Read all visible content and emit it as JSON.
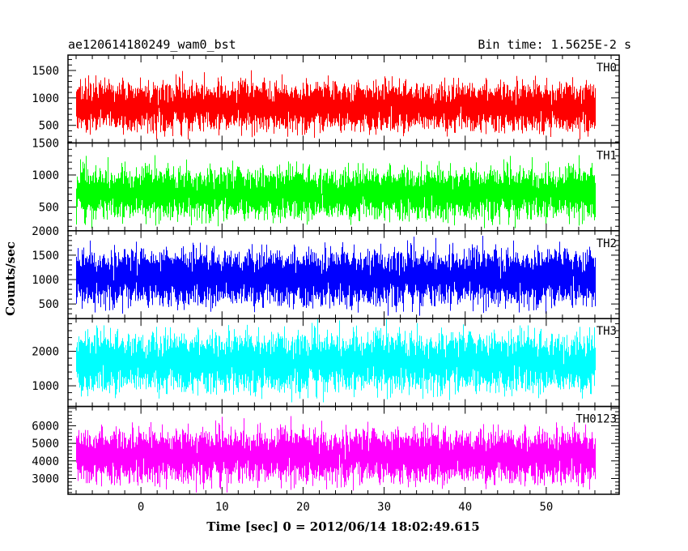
{
  "header": {
    "title": "ae120614180249_wam0_bst",
    "bin_time": "Bin time: 1.5625E-2 s"
  },
  "chart_data": {
    "type": "line",
    "title": "ae120614180249_wam0_bst",
    "xlabel": "Time [sec] 0 = 2012/06/14 18:02:49.615",
    "ylabel": "Counts/sec",
    "xlim": [
      -9,
      59
    ],
    "x_ticks": [
      0,
      10,
      20,
      30,
      40,
      50
    ],
    "x_range_data": [
      -8,
      56
    ],
    "bin_time_s": 0.015625,
    "grid": false,
    "panels": [
      {
        "name": "TH0",
        "color": "#ff0000",
        "ylim": [
          180,
          1780
        ],
        "yticks": [
          500,
          1000,
          1500
        ],
        "mean": 850,
        "min": 240,
        "max": 1760
      },
      {
        "name": "TH1",
        "color": "#00ff00",
        "ylim": [
          130,
          1500
        ],
        "yticks": [
          500,
          1000,
          1500
        ],
        "mean": 720,
        "min": 170,
        "max": 1500
      },
      {
        "name": "TH2",
        "color": "#0000ff",
        "ylim": [
          200,
          2000
        ],
        "yticks": [
          500,
          1000,
          1500,
          2000
        ],
        "mean": 1050,
        "min": 260,
        "max": 2000
      },
      {
        "name": "TH3",
        "color": "#00ffff",
        "ylim": [
          400,
          2950
        ],
        "yticks": [
          1000,
          2000
        ],
        "mean": 1700,
        "min": 520,
        "max": 2950
      },
      {
        "name": "TH0123",
        "color": "#ff00ff",
        "ylim": [
          2100,
          7100
        ],
        "yticks": [
          3000,
          4000,
          5000,
          6000
        ],
        "mean": 4300,
        "min": 2200,
        "max": 6900
      }
    ]
  }
}
